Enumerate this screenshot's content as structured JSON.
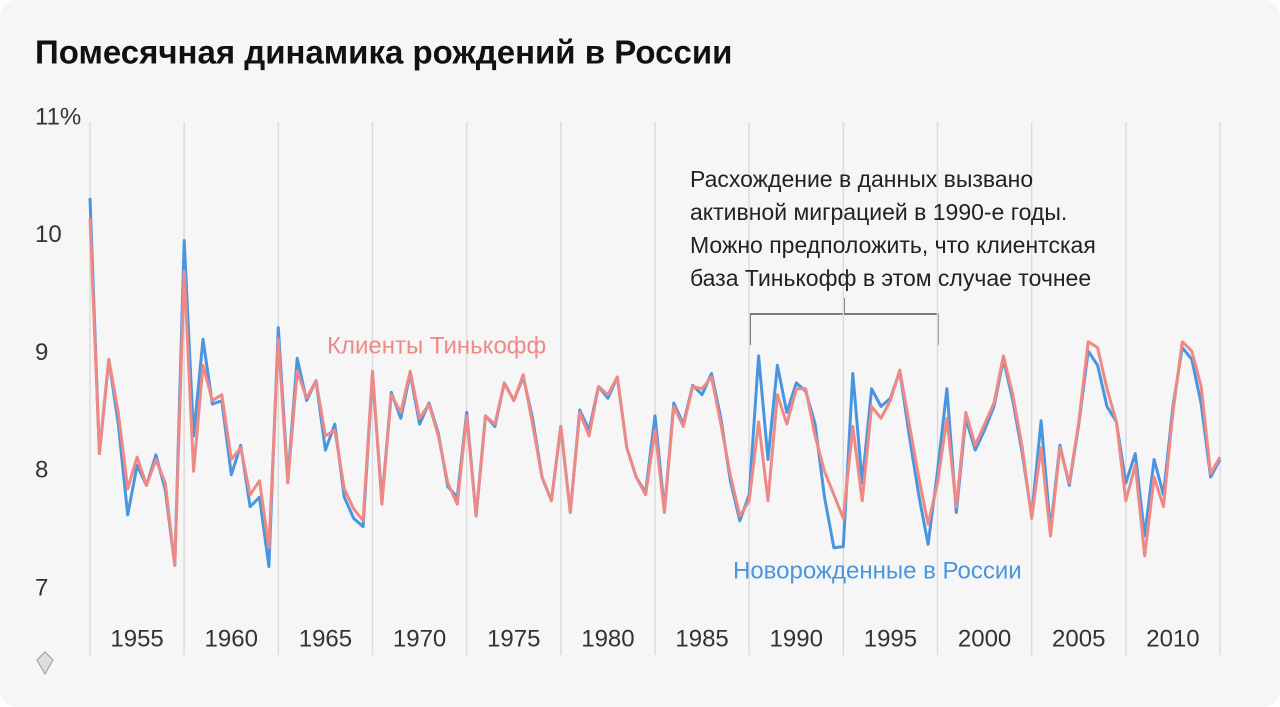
{
  "chart_data": {
    "type": "line",
    "title": "Помесячная динамика рождений в России",
    "annotation": [
      "Расхождение в данных вызвано",
      "активной миграцией в 1990-е годы.",
      "Можно предположить, что клиентская",
      "база Тинькофф в этом случае точнее"
    ],
    "x": [
      1955,
      1955.5,
      1956,
      1956.5,
      1957,
      1957.5,
      1958,
      1958.5,
      1959,
      1959.5,
      1960,
      1960.5,
      1961,
      1961.5,
      1962,
      1962.5,
      1963,
      1963.5,
      1964,
      1964.5,
      1965,
      1965.5,
      1966,
      1966.5,
      1967,
      1967.5,
      1968,
      1968.5,
      1969,
      1969.5,
      1970,
      1970.5,
      1971,
      1971.5,
      1972,
      1972.5,
      1973,
      1973.5,
      1974,
      1974.5,
      1975,
      1975.5,
      1976,
      1976.5,
      1977,
      1977.5,
      1978,
      1978.5,
      1979,
      1979.5,
      1980,
      1980.5,
      1981,
      1981.5,
      1982,
      1982.5,
      1983,
      1983.5,
      1984,
      1984.5,
      1985,
      1985.5,
      1986,
      1986.5,
      1987,
      1987.5,
      1988,
      1988.5,
      1989,
      1989.5,
      1990,
      1990.5,
      1991,
      1991.5,
      1992,
      1992.5,
      1993,
      1993.5,
      1994,
      1994.5,
      1995,
      1995.5,
      1996,
      1996.5,
      1997,
      1997.5,
      1998,
      1998.5,
      1999,
      1999.5,
      2000,
      2000.5,
      2001,
      2001.5,
      2002,
      2002.5,
      2003,
      2003.5,
      2004,
      2004.5,
      2005,
      2005.5,
      2006,
      2006.5,
      2007,
      2007.5,
      2008,
      2008.5,
      2009,
      2009.5,
      2010,
      2010.5,
      2011,
      2011.5,
      2012,
      2012.5,
      2013,
      2013.5,
      2014,
      2014.5,
      2015
    ],
    "series": [
      {
        "name": "Новорожденные в России",
        "color": "#4a95e0",
        "values": [
          10.32,
          8.15,
          8.95,
          8.4,
          7.63,
          8.05,
          7.88,
          8.14,
          7.84,
          7.2,
          9.96,
          8.3,
          9.12,
          8.57,
          8.6,
          7.97,
          8.22,
          7.7,
          7.78,
          7.19,
          9.22,
          7.93,
          8.96,
          8.6,
          8.77,
          8.18,
          8.4,
          7.78,
          7.6,
          7.53,
          8.82,
          7.75,
          8.67,
          8.45,
          8.83,
          8.4,
          8.58,
          8.32,
          7.87,
          7.78,
          8.5,
          7.62,
          8.47,
          8.38,
          8.75,
          8.6,
          8.8,
          8.45,
          7.95,
          7.75,
          8.38,
          7.65,
          8.52,
          8.35,
          8.72,
          8.62,
          8.8,
          8.2,
          7.95,
          7.82,
          8.47,
          7.67,
          8.58,
          8.4,
          8.73,
          8.65,
          8.83,
          8.45,
          7.92,
          7.58,
          7.8,
          8.98,
          8.1,
          8.9,
          8.5,
          8.75,
          8.68,
          8.4,
          7.78,
          7.35,
          7.36,
          8.83,
          7.9,
          8.7,
          8.55,
          8.62,
          8.85,
          8.3,
          7.8,
          7.38,
          8.0,
          8.7,
          7.65,
          8.45,
          8.18,
          8.35,
          8.55,
          8.95,
          8.6,
          8.15,
          7.62,
          8.43,
          7.5,
          8.22,
          7.88,
          8.4,
          9.02,
          8.9,
          8.55,
          8.42,
          7.9,
          8.15,
          7.45,
          8.1,
          7.8,
          8.55,
          9.05,
          8.95,
          8.57,
          7.95,
          8.1
        ]
      },
      {
        "name": "Клиенты Тинькофф",
        "color": "#ee8a86",
        "values": [
          10.15,
          8.15,
          8.95,
          8.5,
          7.85,
          8.12,
          7.88,
          8.1,
          7.9,
          7.2,
          9.7,
          8.0,
          8.9,
          8.6,
          8.65,
          8.1,
          8.2,
          7.8,
          7.92,
          7.35,
          9.12,
          7.9,
          8.85,
          8.62,
          8.77,
          8.3,
          8.35,
          7.85,
          7.68,
          7.58,
          8.85,
          7.72,
          8.65,
          8.5,
          8.85,
          8.45,
          8.57,
          8.3,
          7.9,
          7.72,
          8.47,
          7.62,
          8.47,
          8.4,
          8.75,
          8.6,
          8.82,
          8.4,
          7.95,
          7.75,
          8.38,
          7.65,
          8.5,
          8.3,
          8.72,
          8.65,
          8.8,
          8.2,
          7.95,
          7.8,
          8.35,
          7.65,
          8.55,
          8.38,
          8.72,
          8.7,
          8.8,
          8.4,
          7.97,
          7.62,
          7.75,
          8.42,
          7.75,
          8.65,
          8.4,
          8.7,
          8.7,
          8.3,
          8.0,
          7.8,
          7.6,
          8.38,
          7.75,
          8.55,
          8.45,
          8.6,
          8.86,
          8.4,
          7.95,
          7.55,
          7.9,
          8.45,
          7.7,
          8.5,
          8.22,
          8.4,
          8.58,
          8.98,
          8.65,
          8.2,
          7.6,
          8.2,
          7.45,
          8.2,
          7.9,
          8.42,
          9.1,
          9.05,
          8.7,
          8.42,
          7.75,
          8.05,
          7.28,
          7.95,
          7.7,
          8.5,
          9.1,
          9.02,
          8.72,
          7.98,
          8.12
        ]
      }
    ],
    "xlim": [
      1955,
      2015
    ],
    "xticks": [
      1955,
      1960,
      1965,
      1970,
      1975,
      1980,
      1985,
      1990,
      1995,
      2000,
      2005,
      2010
    ],
    "ylim": [
      7,
      11
    ],
    "yticks": [
      {
        "value": 11,
        "label": "11%"
      },
      10,
      9,
      8,
      7
    ],
    "grid": "x"
  }
}
